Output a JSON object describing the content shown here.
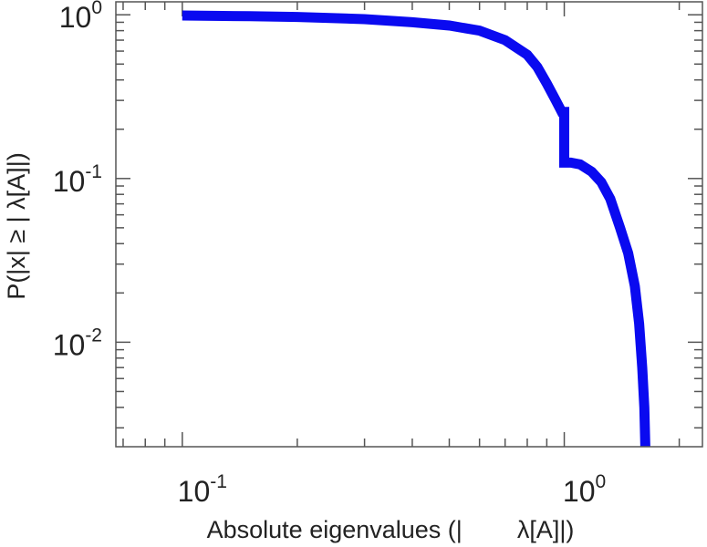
{
  "chart_data": {
    "type": "line",
    "title": "",
    "xlabel_parts": [
      "Absolute eigenvalues (|",
      "λ[A]|)"
    ],
    "ylabel": "P(|x|  ≥ | λ[A]|)",
    "x_scale": "log",
    "y_scale": "log",
    "xlim": [
      0.067,
      2.3
    ],
    "ylim": [
      0.0023,
      1.2
    ],
    "x_ticks": [
      {
        "base": "10",
        "exp": "-1",
        "value": 0.1
      },
      {
        "base": "10",
        "exp": "0",
        "value": 1
      }
    ],
    "y_ticks": [
      {
        "base": "10",
        "exp": "0",
        "value": 1
      },
      {
        "base": "10",
        "exp": "-1",
        "value": 0.1
      },
      {
        "base": "10",
        "exp": "-2",
        "value": 0.01
      }
    ],
    "grid": false,
    "line_color": "#0a0af0",
    "series": [
      {
        "x": [
          0.1,
          0.15,
          0.2,
          0.3,
          0.4,
          0.5,
          0.6,
          0.7,
          0.8,
          0.85,
          0.9,
          0.95,
          0.985,
          1.0,
          1.0,
          1.0,
          1.04,
          1.1,
          1.18,
          1.25,
          1.32,
          1.4,
          1.47,
          1.53,
          1.57,
          1.6,
          1.62,
          1.63
        ],
        "y": [
          0.99,
          0.98,
          0.97,
          0.94,
          0.9,
          0.86,
          0.8,
          0.7,
          0.57,
          0.48,
          0.38,
          0.3,
          0.255,
          0.255,
          0.19,
          0.125,
          0.125,
          0.122,
          0.11,
          0.095,
          0.075,
          0.05,
          0.035,
          0.022,
          0.013,
          0.007,
          0.004,
          0.0023
        ]
      }
    ]
  }
}
